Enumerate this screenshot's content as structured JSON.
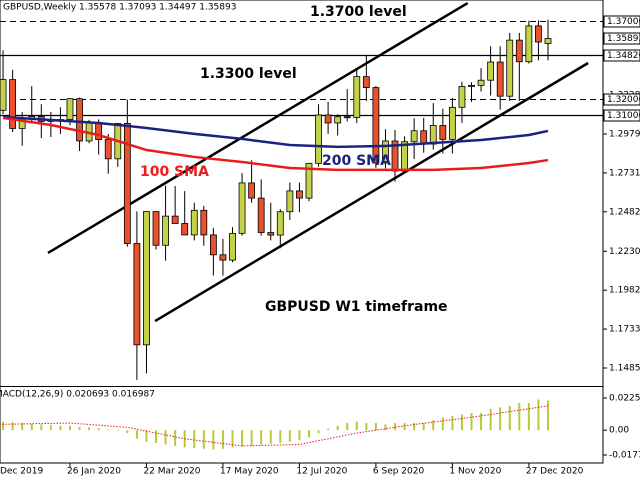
{
  "chart_data": [
    {
      "type": "candlestick",
      "title": "GBPUSD,Weekly  1.35578 1.37093 1.34497 1.35893",
      "categories": [
        "Dec 2019",
        null,
        null,
        null,
        null,
        null,
        null,
        null,
        "26 Jan 2020",
        null,
        null,
        null,
        null,
        null,
        null,
        null,
        "22 Mar 2020",
        null,
        null,
        null,
        null,
        null,
        null,
        null,
        "17 May 2020",
        null,
        null,
        null,
        null,
        null,
        null,
        null,
        "12 Jul 2020",
        null,
        null,
        null,
        null,
        null,
        null,
        null,
        "6 Sep 2020",
        null,
        null,
        null,
        null,
        null,
        null,
        null,
        "1 Nov 2020",
        null,
        null,
        null,
        null,
        null,
        null,
        null,
        "27 Dec 2020",
        null,
        null
      ],
      "open": [
        1.294,
        1.3131,
        1.3327,
        1.3015,
        1.3077,
        1.3091,
        1.306,
        1.307,
        1.3072,
        1.3205,
        1.2935,
        1.3049,
        1.2944,
        1.2821,
        1.3047,
        1.228,
        1.1633,
        1.2484,
        1.2269,
        1.2455,
        1.2408,
        1.2335,
        1.2492,
        1.2335,
        1.2208,
        1.2174,
        1.2345,
        1.2667,
        1.257,
        1.235,
        1.2334,
        1.2483,
        1.2616,
        1.257,
        1.2792,
        1.3101,
        1.305,
        1.309,
        1.3085,
        1.3346,
        1.3276,
        1.2794,
        1.2935,
        1.2743,
        1.293,
        1.3,
        1.2915,
        1.3034,
        1.2945,
        1.315,
        1.3283,
        1.329,
        1.3323,
        1.3439,
        1.3221,
        1.3579,
        1.3441,
        1.367,
        1.35578
      ],
      "high": [
        1.318,
        1.3514,
        1.339,
        1.312,
        1.3285,
        1.317,
        1.312,
        1.315,
        1.3208,
        1.3212,
        1.307,
        1.3073,
        1.298,
        1.305,
        1.32,
        1.2485,
        1.2486,
        1.2485,
        1.265,
        1.2647,
        1.2615,
        1.254,
        1.252,
        1.238,
        1.231,
        1.2385,
        1.273,
        1.2812,
        1.269,
        1.254,
        1.25,
        1.267,
        1.267,
        1.2795,
        1.317,
        1.3185,
        1.3105,
        1.3267,
        1.34,
        1.3482,
        1.3286,
        1.301,
        1.3005,
        1.2965,
        1.308,
        1.3083,
        1.3177,
        1.314,
        1.321,
        1.3313,
        1.331,
        1.34,
        1.354,
        1.354,
        1.3625,
        1.3625,
        1.3703,
        1.3705,
        1.37093
      ],
      "low": [
        1.2925,
        1.3107,
        1.2992,
        1.2904,
        1.3055,
        1.2953,
        1.296,
        1.298,
        1.3035,
        1.2871,
        1.292,
        1.2848,
        1.2725,
        1.277,
        1.226,
        1.1409,
        1.145,
        1.2241,
        1.217,
        1.241,
        1.234,
        1.23,
        1.2265,
        1.2075,
        1.2075,
        1.216,
        1.233,
        1.254,
        1.233,
        1.23,
        1.225,
        1.243,
        1.248,
        1.255,
        1.277,
        1.298,
        1.297,
        1.306,
        1.305,
        1.319,
        1.2763,
        1.276,
        1.2675,
        1.274,
        1.282,
        1.286,
        1.288,
        1.2855,
        1.2855,
        1.305,
        1.3185,
        1.325,
        1.3225,
        1.3135,
        1.319,
        1.319,
        1.343,
        1.345,
        1.34497
      ],
      "close": [
        1.3131,
        1.3327,
        1.3015,
        1.3077,
        1.3091,
        1.306,
        1.307,
        1.3072,
        1.3205,
        1.2935,
        1.3049,
        1.2944,
        1.2821,
        1.3047,
        1.228,
        1.1633,
        1.2484,
        1.2269,
        1.2455,
        1.2408,
        1.2335,
        1.2492,
        1.2335,
        1.2208,
        1.2174,
        1.2345,
        1.2667,
        1.257,
        1.235,
        1.2334,
        1.2483,
        1.2616,
        1.257,
        1.2792,
        1.3101,
        1.305,
        1.309,
        1.3085,
        1.3346,
        1.3276,
        1.2794,
        1.2935,
        1.2743,
        1.293,
        1.3,
        1.2915,
        1.3034,
        1.2945,
        1.315,
        1.3283,
        1.329,
        1.3323,
        1.3439,
        1.3221,
        1.3579,
        1.3441,
        1.367,
        1.3567,
        1.35893
      ],
      "up_color": "#c4d24a",
      "down_color": "#e8512b",
      "ylim": [
        1.13764,
        1.38353
      ],
      "yticks": [
        {
          "value": 1.1485,
          "label": "1.14850"
        },
        1.17335,
        {
          "value": 1.1982,
          "label": "1.19820"
        },
        1.22305,
        1.24825,
        {
          "value": 1.2731,
          "label": "1.27310"
        },
        1.29795,
        {
          "value": 1.3228,
          "label": "1.32280"
        }
      ],
      "levels": [
        {
          "value": 1.37,
          "label": "1.37000",
          "style": "dashed"
        },
        {
          "value": 1.3482,
          "label": "1.34820",
          "style": "solid"
        },
        {
          "value": 1.32,
          "label": "1.32000",
          "style": "dashed"
        },
        {
          "value": 1.31,
          "label": "1.31000",
          "style": "solid"
        }
      ],
      "series": [
        {
          "name": "200 SMA",
          "color": "#1a237e",
          "x": [
            1,
            6,
            11,
            16,
            21,
            26,
            31,
            36,
            41,
            46,
            51,
            56,
            58
          ],
          "values": [
            1.3088,
            1.3069,
            1.305,
            1.3018,
            1.298,
            1.2948,
            1.2909,
            1.2897,
            1.2903,
            1.2922,
            1.2941,
            1.2973,
            1.2999
          ]
        },
        {
          "name": "100 SMA",
          "color": "#e81c1c",
          "x": [
            1,
            6,
            11,
            16,
            21,
            26,
            31,
            36,
            41,
            46,
            51,
            56,
            58
          ],
          "values": [
            1.3082,
            1.3037,
            1.2973,
            1.2877,
            1.2833,
            1.2801,
            1.2762,
            1.275,
            1.275,
            1.275,
            1.2762,
            1.2794,
            1.2813
          ]
        }
      ],
      "trendlines": [
        {
          "x": [
            5.7,
            49.6
          ],
          "y": [
            1.222,
            1.3816
          ]
        },
        {
          "x": [
            16.9,
            62.2
          ],
          "y": [
            1.1785,
            1.3433
          ]
        }
      ],
      "annotations": [
        "1.3700 level",
        "1.3300 level",
        "GBPUSD W1 timeframe"
      ]
    },
    {
      "type": "bar",
      "title": "MACD(12,26,9) 0.020693 0.016987",
      "values": [
        0.0065,
        0.006,
        0.0055,
        0.005,
        0.0045,
        0.004,
        0.0035,
        0.003,
        0.003,
        0.0025,
        0.002,
        0.0015,
        0.0005,
        0.0,
        -0.002,
        -0.006,
        -0.008,
        -0.009,
        -0.01,
        -0.011,
        -0.012,
        -0.0125,
        -0.013,
        -0.0135,
        -0.013,
        -0.012,
        -0.0115,
        -0.011,
        -0.01,
        -0.0095,
        -0.009,
        -0.008,
        -0.007,
        -0.005,
        -0.002,
        0.001,
        0.003,
        0.005,
        0.006,
        0.005,
        0.005,
        0.004,
        0.005,
        0.005,
        0.005,
        0.005,
        0.007,
        0.009,
        0.01,
        0.011,
        0.012,
        0.012,
        0.015,
        0.016,
        0.017,
        0.019,
        0.019,
        0.0215,
        0.020693
      ],
      "color": "#b8c93a",
      "signal": {
        "color": "#e81c1c",
        "x": [
          0,
          8,
          14,
          20,
          26,
          32,
          38,
          44,
          50,
          56,
          58
        ],
        "values": [
          0.004,
          0.005,
          0.002,
          -0.006,
          -0.011,
          -0.01,
          -0.002,
          0.004,
          0.009,
          0.015,
          0.016987
        ]
      },
      "ylim": [
        -0.02224,
        0.0302
      ],
      "yticks": [
        0.022509,
        {
          "value": 0,
          "label": "0.00"
        },
        -0.017347
      ]
    }
  ]
}
